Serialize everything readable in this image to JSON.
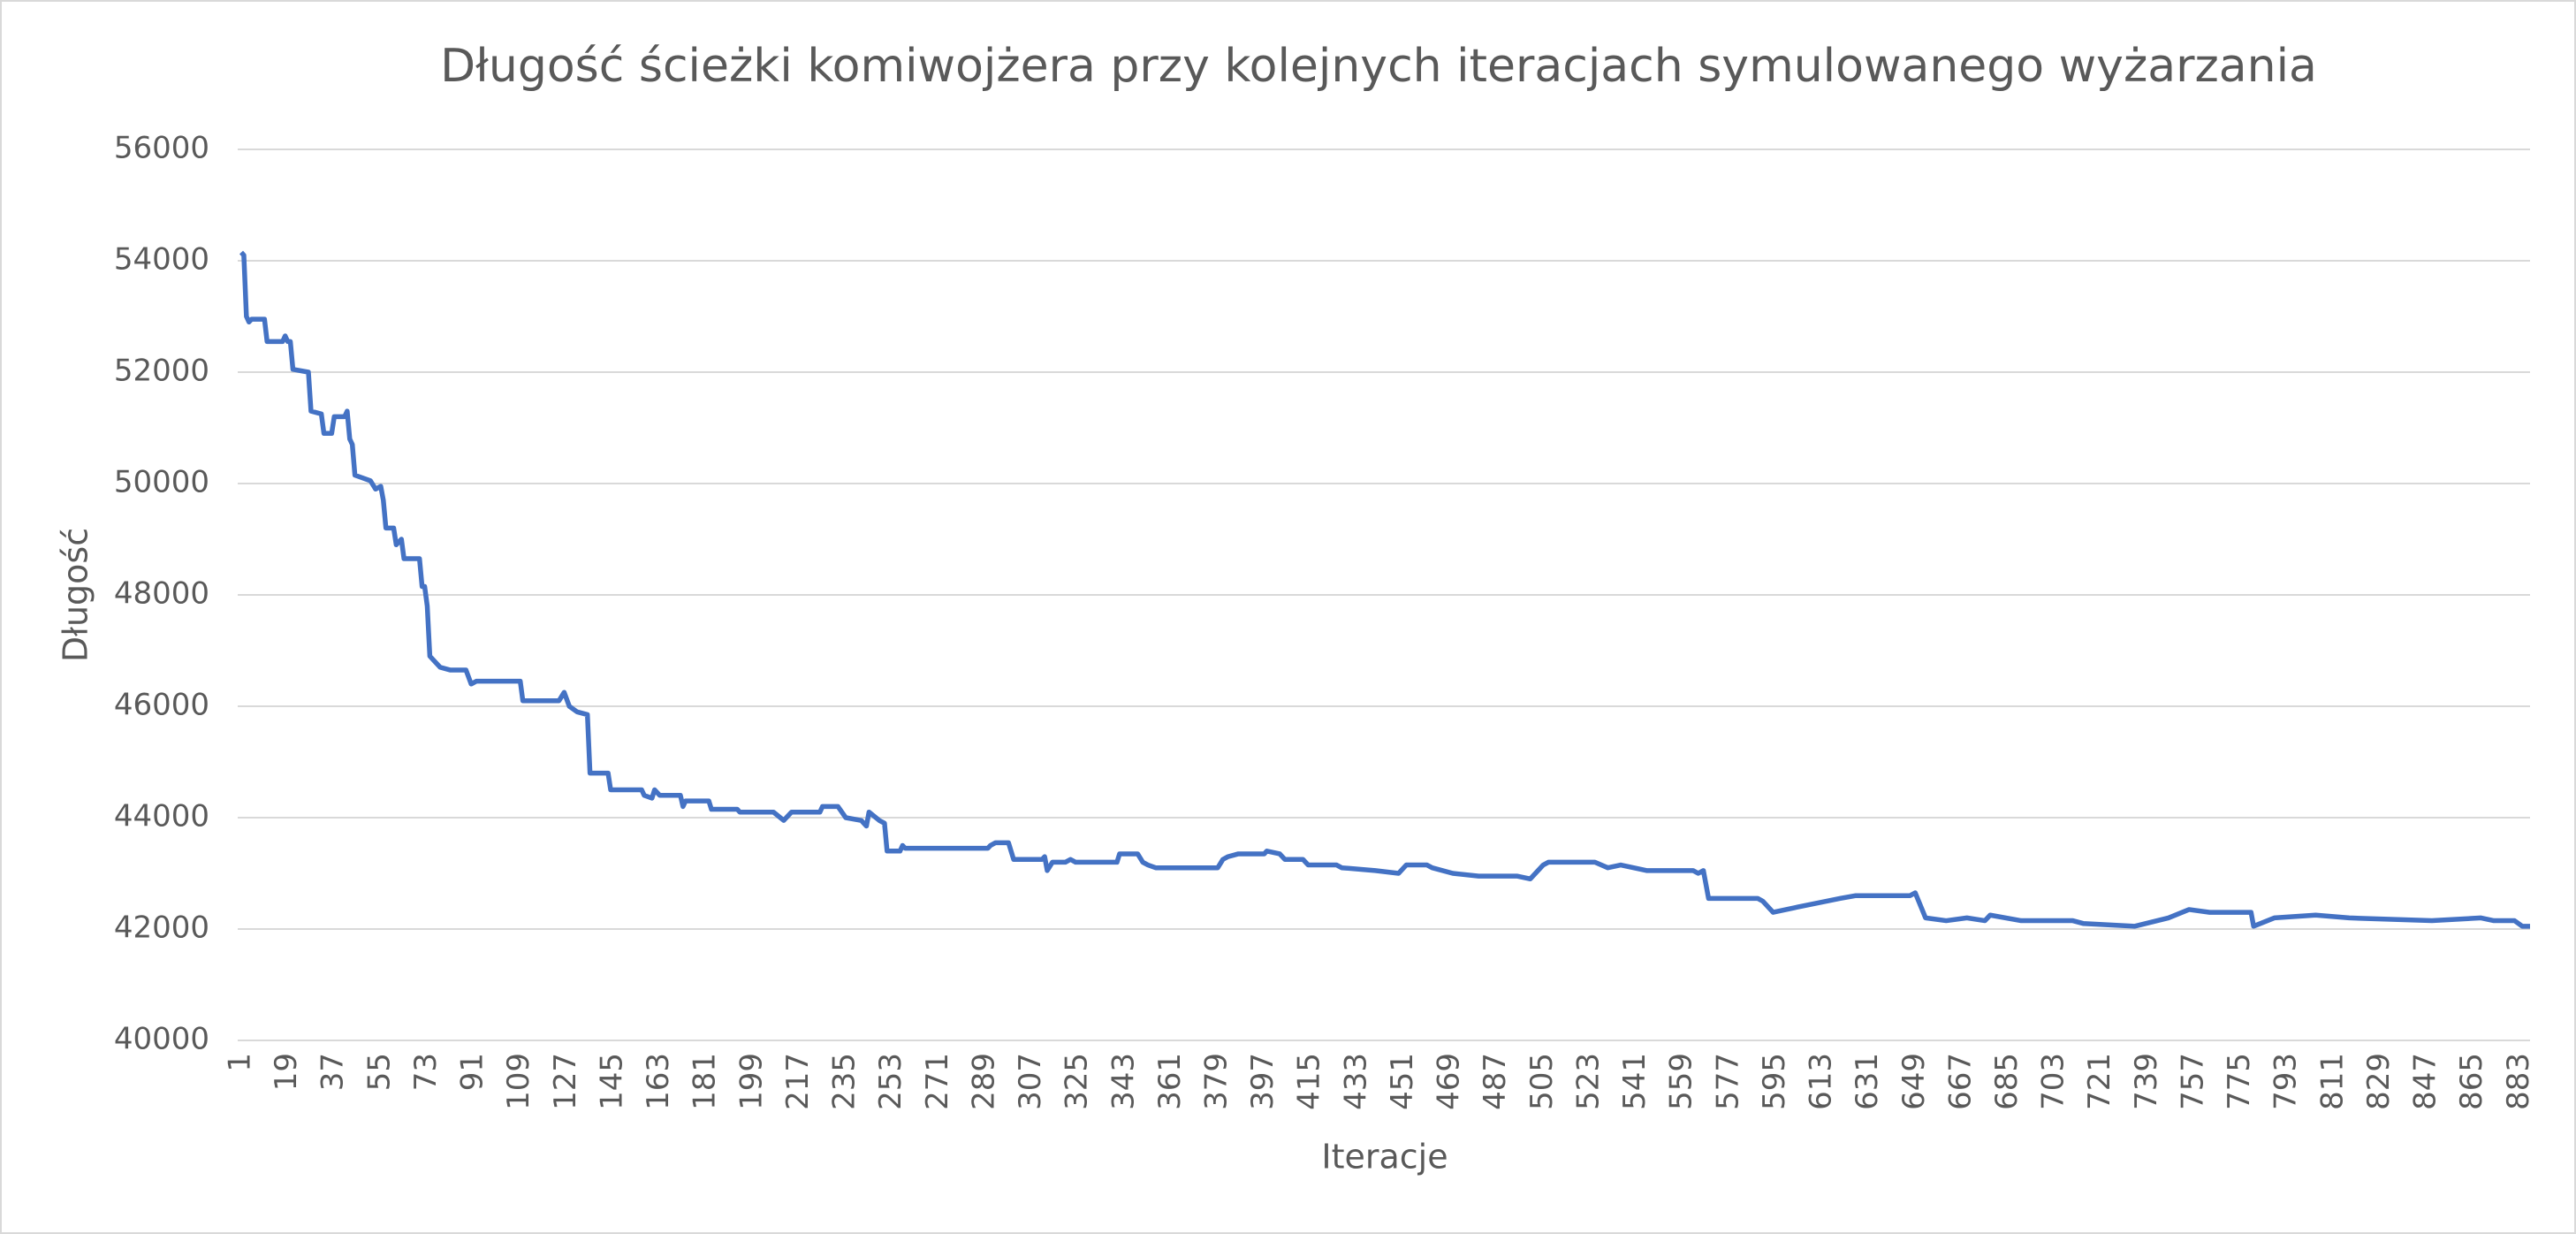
{
  "chart_data": {
    "type": "line",
    "title": "Długość ścieżki komiwojżera przy kolejnych iteracjach symulowanego wyżarzania",
    "x_label": "Iteracje",
    "y_label": "Długość",
    "color": "#4472c4",
    "grid": true,
    "x": [
      1,
      2,
      3,
      4,
      5,
      10,
      11,
      17,
      18,
      19,
      20,
      21,
      27,
      28,
      32,
      33,
      36,
      37,
      41,
      42,
      43,
      44,
      45,
      48,
      51,
      53,
      55,
      56,
      57,
      60,
      61,
      63,
      64,
      70,
      71,
      72,
      73,
      74,
      76,
      78,
      82,
      88,
      90,
      92,
      109,
      110,
      124,
      126,
      128,
      131,
      135,
      136,
      143,
      144,
      156,
      157,
      160,
      161,
      163,
      171,
      172,
      173,
      182,
      183,
      193,
      194,
      207,
      211,
      214,
      225,
      226,
      232,
      235,
      241,
      243,
      244,
      248,
      250,
      251,
      256,
      257,
      258,
      290,
      291,
      293,
      298,
      300,
      311,
      312,
      313,
      315,
      320,
      322,
      324,
      340,
      341,
      348,
      350,
      352,
      355,
      379,
      381,
      383,
      387,
      397,
      398,
      403,
      405,
      412,
      414,
      425,
      427,
      440,
      449,
      452,
      460,
      462,
      470,
      480,
      495,
      500,
      505,
      507,
      525,
      530,
      535,
      540,
      545,
      563,
      565,
      567,
      569,
      588,
      590,
      594,
      604,
      620,
      626,
      647,
      649,
      653,
      661,
      669,
      676,
      678,
      690,
      710,
      714,
      734,
      747,
      755,
      763,
      779,
      780,
      788,
      804,
      817,
      849,
      868,
      873,
      881,
      884,
      887
    ],
    "values": [
      54150,
      54100,
      53000,
      52900,
      52950,
      52950,
      52550,
      52550,
      52650,
      52550,
      52550,
      52050,
      52000,
      51300,
      51250,
      50900,
      50900,
      51200,
      51200,
      51300,
      50800,
      50700,
      50150,
      50100,
      50050,
      49900,
      49950,
      49700,
      49200,
      49200,
      48900,
      49000,
      48650,
      48650,
      48150,
      48150,
      47800,
      46900,
      46800,
      46700,
      46650,
      46650,
      46400,
      46450,
      46450,
      46100,
      46100,
      46250,
      46000,
      45900,
      45850,
      44800,
      44800,
      44500,
      44500,
      44400,
      44350,
      44500,
      44400,
      44400,
      44200,
      44300,
      44300,
      44150,
      44150,
      44100,
      44100,
      43950,
      44100,
      44100,
      44200,
      44200,
      44000,
      43950,
      43850,
      44100,
      43950,
      43900,
      43400,
      43400,
      43500,
      43450,
      43450,
      43500,
      43550,
      43550,
      43250,
      43250,
      43300,
      43050,
      43200,
      43200,
      43250,
      43200,
      43200,
      43350,
      43350,
      43200,
      43150,
      43100,
      43100,
      43250,
      43300,
      43350,
      43350,
      43400,
      43350,
      43250,
      43250,
      43150,
      43150,
      43100,
      43050,
      43000,
      43150,
      43150,
      43100,
      43000,
      42950,
      42950,
      42900,
      43150,
      43200,
      43200,
      43100,
      43150,
      43100,
      43050,
      43050,
      43000,
      43050,
      42550,
      42550,
      42500,
      42300,
      42400,
      42550,
      42600,
      42600,
      42650,
      42200,
      42150,
      42200,
      42150,
      42250,
      42150,
      42150,
      42100,
      42050,
      42200,
      42350,
      42300,
      42300,
      42050,
      42200,
      42250,
      42200,
      42150,
      42200,
      42150,
      42150,
      42050,
      42050
    ],
    "xlim": [
      1,
      887
    ],
    "xticks": [
      1,
      19,
      37,
      55,
      73,
      91,
      109,
      127,
      145,
      163,
      181,
      199,
      217,
      235,
      253,
      271,
      289,
      307,
      325,
      343,
      361,
      379,
      397,
      415,
      433,
      451,
      469,
      487,
      505,
      523,
      541,
      559,
      577,
      595,
      613,
      631,
      649,
      667,
      685,
      703,
      721,
      739,
      757,
      775,
      793,
      811,
      829,
      847,
      865,
      883
    ],
    "ylim": [
      40000,
      56000
    ],
    "yticks": [
      40000,
      42000,
      44000,
      46000,
      48000,
      50000,
      52000,
      54000,
      56000
    ]
  }
}
